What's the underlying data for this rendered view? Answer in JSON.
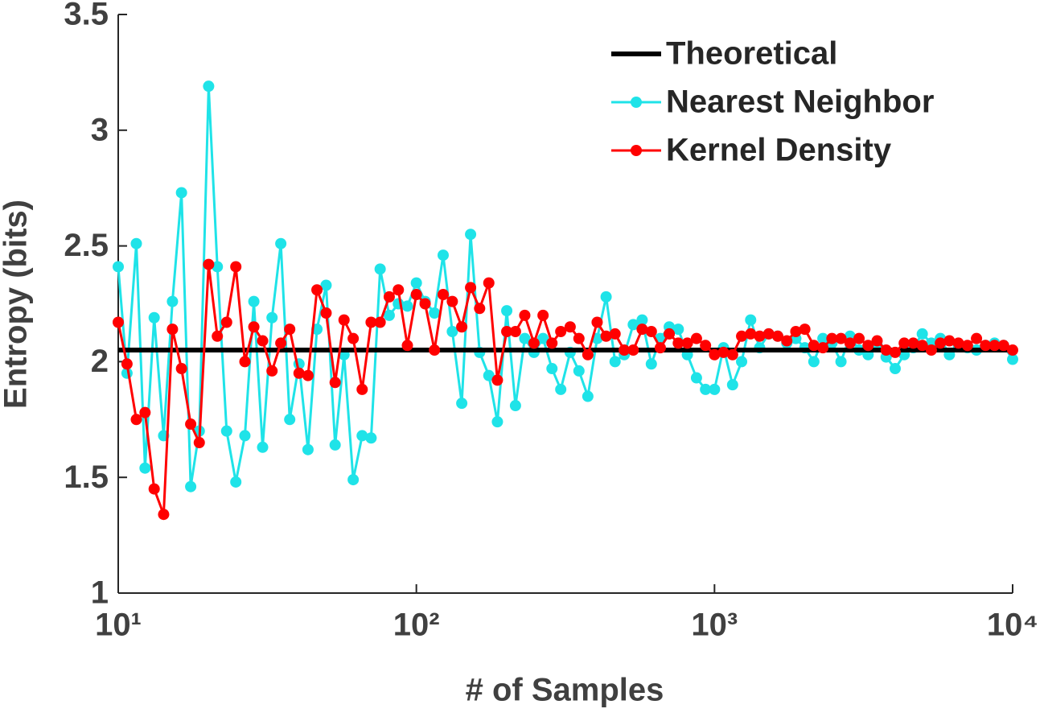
{
  "chart_data": {
    "type": "line",
    "xlabel": "# of Samples",
    "ylabel": "Entropy (bits)",
    "xscale": "log",
    "xlim": [
      10,
      10000
    ],
    "ylim": [
      1,
      3.5
    ],
    "xticks": [
      {
        "value": 10,
        "label": "10¹"
      },
      {
        "value": 100,
        "label": "10²"
      },
      {
        "value": 1000,
        "label": "10³"
      },
      {
        "value": 10000,
        "label": "10⁴"
      }
    ],
    "yticks": [
      1,
      1.5,
      2,
      2.5,
      3,
      3.5
    ],
    "legend": "upper right",
    "x": [
      10,
      10.7,
      11.5,
      12.3,
      13.2,
      14.2,
      15.2,
      16.3,
      17.5,
      18.7,
      20.1,
      21.5,
      23.1,
      24.8,
      26.6,
      28.5,
      30.5,
      32.8,
      35.1,
      37.6,
      40.4,
      43.3,
      46.4,
      49.8,
      53.4,
      57.2,
      61.4,
      65.8,
      70.5,
      75.6,
      81.1,
      87,
      93.3,
      100,
      107,
      115,
      123,
      132,
      142,
      152,
      163,
      175,
      187,
      201,
      215,
      231,
      248,
      266,
      285,
      305,
      328,
      351,
      376,
      404,
      433,
      464,
      498,
      534,
      572,
      614,
      658,
      705,
      756,
      811,
      870,
      933,
      1000,
      1072,
      1150,
      1233,
      1322,
      1417,
      1520,
      1630,
      1748,
      1874,
      2009,
      2154,
      2310,
      2477,
      2656,
      2848,
      3054,
      3275,
      3511,
      3765,
      4037,
      4329,
      4642,
      4977,
      5337,
      5722,
      6136,
      6579,
      7055,
      7565,
      8111,
      8697,
      9326,
      10000
    ],
    "series": [
      {
        "name": "Theoretical",
        "color": "#000000",
        "marker": false,
        "x": [
          10,
          10000
        ],
        "values": [
          2.05,
          2.05
        ]
      },
      {
        "name": "Nearest Neighbor",
        "color": "#1fe3e8",
        "marker": true,
        "values": [
          2.41,
          1.95,
          2.51,
          1.54,
          2.19,
          1.68,
          2.26,
          2.73,
          1.46,
          1.7,
          3.19,
          2.41,
          1.7,
          1.48,
          1.68,
          2.26,
          1.63,
          2.19,
          2.51,
          1.75,
          1.99,
          1.62,
          2.14,
          2.33,
          1.64,
          2.03,
          1.49,
          1.68,
          1.67,
          2.4,
          2.2,
          2.25,
          2.24,
          2.34,
          2.26,
          2.21,
          2.46,
          2.13,
          1.82,
          2.55,
          2.04,
          1.94,
          1.74,
          2.22,
          1.81,
          2.1,
          2.04,
          2.1,
          1.97,
          1.88,
          2.04,
          1.96,
          1.85,
          2.1,
          2.28,
          2.0,
          2.03,
          2.16,
          2.18,
          1.99,
          2.1,
          2.15,
          2.14,
          2.03,
          1.93,
          1.88,
          1.88,
          2.06,
          1.9,
          2.0,
          2.18,
          2.06,
          2.12,
          2.11,
          2.08,
          2.1,
          2.06,
          2.0,
          2.1,
          2.08,
          2.0,
          2.11,
          2.05,
          2.03,
          2.07,
          2.02,
          1.97,
          2.03,
          2.06,
          2.12,
          2.08,
          2.1,
          2.03,
          2.07,
          2.06,
          2.05,
          2.07,
          2.08,
          2.07,
          2.01
        ]
      },
      {
        "name": "Kernel Density",
        "color": "#ff0000",
        "marker": true,
        "values": [
          2.17,
          1.99,
          1.75,
          1.78,
          1.45,
          1.34,
          2.14,
          1.97,
          1.73,
          1.65,
          2.42,
          2.11,
          2.17,
          2.41,
          2.0,
          2.15,
          2.09,
          1.96,
          2.08,
          2.14,
          1.95,
          1.94,
          2.31,
          2.21,
          1.91,
          2.18,
          2.1,
          1.88,
          2.17,
          2.17,
          2.28,
          2.31,
          2.07,
          2.29,
          2.25,
          2.05,
          2.29,
          2.26,
          2.15,
          2.32,
          2.23,
          2.34,
          1.92,
          2.13,
          2.13,
          2.2,
          2.08,
          2.2,
          2.08,
          2.13,
          2.15,
          2.1,
          2.03,
          2.17,
          2.11,
          2.12,
          2.05,
          2.05,
          2.14,
          2.13,
          2.06,
          2.12,
          2.08,
          2.08,
          2.1,
          2.07,
          2.03,
          2.04,
          2.03,
          2.11,
          2.12,
          2.11,
          2.12,
          2.11,
          2.09,
          2.13,
          2.14,
          2.07,
          2.06,
          2.1,
          2.1,
          2.08,
          2.1,
          2.07,
          2.09,
          2.05,
          2.04,
          2.08,
          2.08,
          2.07,
          2.05,
          2.08,
          2.09,
          2.08,
          2.07,
          2.1,
          2.07,
          2.07,
          2.07,
          2.05
        ]
      }
    ]
  }
}
